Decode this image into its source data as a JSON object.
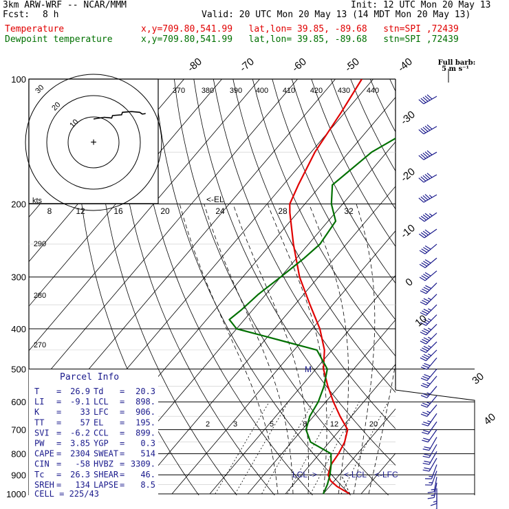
{
  "header": {
    "model": "3km ARW-WRF -- NCAR/MMM",
    "init": "Init: 12 UTC Mon 20 May 13",
    "fcst_label": "Fcst:",
    "fcst_value": "8 h",
    "valid": "Valid: 20 UTC Mon 20 May 13 (14 MDT Mon 20 May 13)",
    "temp_label": "Temperature",
    "temp_info": "x,y=709.80,541.99   lat,lon= 39.85, -89.68   stn=SPI ,72439",
    "dew_label": "Dewpoint temperature",
    "dew_info": "x,y=709.80,541.99   lat,lon= 39.85, -89.68   stn=SPI ,72439"
  },
  "colors": {
    "temperature": "#e00000",
    "dewpoint": "#007000",
    "wind": "#1a1a8c",
    "info": "#1a1a8c"
  },
  "chart_data": {
    "type": "line",
    "title": "",
    "ylabel": "",
    "xlabel": "",
    "pressure_levels": [
      100,
      200,
      300,
      400,
      500,
      600,
      700,
      800,
      900,
      1000
    ],
    "pressure_labels": [
      "100",
      "200",
      "300",
      "400",
      "500",
      "600",
      "700",
      "800",
      "900",
      "1000"
    ],
    "isotherm_labels": [
      "-80",
      "-70",
      "-60",
      "-50",
      "-40",
      "-30",
      "-20",
      "-10",
      "0",
      "10",
      "30",
      "40"
    ],
    "theta_labels": [
      "370",
      "380",
      "390",
      "400",
      "410",
      "420",
      "430",
      "440"
    ],
    "hodograph_speed_labels": [
      "8",
      "12",
      "16",
      "20",
      "24",
      "28",
      "32"
    ],
    "hodograph_ring_labels": [
      "30",
      "20",
      "10"
    ],
    "mixing_ratio_labels": [
      "2",
      "3",
      "5",
      "8",
      "12",
      "20"
    ],
    "adiabat_labels": [
      "290",
      "280",
      "270"
    ],
    "kts_label": "kts",
    "el_marker": "<-EL",
    "lcl_markers": [
      "LCL ->",
      "<-LCL",
      "<-LFC"
    ],
    "m_marker": "M",
    "barb_legend": [
      "Full barb:",
      "5 m s⁻¹"
    ],
    "series": [
      {
        "name": "Temperature",
        "points": [
          [
            1000,
            27
          ],
          [
            960,
            22
          ],
          [
            930,
            19
          ],
          [
            900,
            17
          ],
          [
            850,
            15.5
          ],
          [
            800,
            15
          ],
          [
            750,
            14
          ],
          [
            700,
            12
          ],
          [
            650,
            7
          ],
          [
            600,
            2
          ],
          [
            550,
            -3
          ],
          [
            500,
            -8
          ],
          [
            450,
            -12
          ],
          [
            400,
            -18
          ],
          [
            350,
            -26
          ],
          [
            300,
            -35
          ],
          [
            250,
            -44
          ],
          [
            210,
            -52
          ],
          [
            200,
            -54
          ],
          [
            180,
            -56
          ],
          [
            150,
            -59
          ],
          [
            120,
            -61
          ],
          [
            100,
            -63
          ]
        ]
      },
      {
        "name": "Dewpoint temperature",
        "points": [
          [
            1000,
            20
          ],
          [
            950,
            19
          ],
          [
            900,
            17.5
          ],
          [
            850,
            15.5
          ],
          [
            800,
            13
          ],
          [
            750,
            5
          ],
          [
            700,
            1
          ],
          [
            650,
            -1
          ],
          [
            600,
            -2
          ],
          [
            550,
            -4
          ],
          [
            500,
            -7
          ],
          [
            450,
            -14
          ],
          [
            430,
            -24
          ],
          [
            400,
            -40
          ],
          [
            380,
            -44
          ],
          [
            360,
            -43
          ],
          [
            330,
            -42
          ],
          [
            300,
            -40
          ],
          [
            270,
            -38
          ],
          [
            250,
            -37
          ],
          [
            220,
            -38
          ],
          [
            200,
            -43
          ],
          [
            180,
            -47
          ],
          [
            150,
            -44
          ],
          [
            130,
            -38
          ],
          [
            120,
            -35
          ],
          [
            100,
            -35
          ]
        ]
      }
    ],
    "hodograph_trace_units": [
      [
        0,
        0
      ],
      [
        1.3,
        0.7
      ],
      [
        2.2,
        0.4
      ],
      [
        2.3,
        1.4
      ],
      [
        3.4,
        1.7
      ],
      [
        3.5,
        2.7
      ],
      [
        4.6,
        3.0
      ],
      [
        5.6,
        2.7
      ],
      [
        5.9,
        2.0
      ],
      [
        6.2,
        2.1
      ],
      [
        6.3,
        2.3
      ]
    ],
    "wind_profile": {
      "pressure": [
        110,
        130,
        150,
        170,
        190,
        210,
        230,
        250,
        270,
        290,
        310,
        330,
        350,
        370,
        390,
        410,
        430,
        450,
        470,
        500,
        520,
        550,
        580,
        610,
        640,
        670,
        700,
        730,
        760,
        790,
        820,
        850,
        880,
        910,
        940,
        970,
        1000
      ],
      "speed_kts": [
        50,
        50,
        50,
        50,
        45,
        45,
        40,
        40,
        40,
        40,
        40,
        35,
        35,
        35,
        35,
        35,
        35,
        35,
        30,
        30,
        25,
        25,
        25,
        25,
        25,
        20,
        20,
        20,
        20,
        20,
        20,
        15,
        15,
        15,
        15,
        15,
        10
      ],
      "direction_deg": [
        240,
        240,
        240,
        240,
        240,
        235,
        235,
        230,
        230,
        230,
        225,
        225,
        225,
        225,
        225,
        225,
        225,
        225,
        220,
        220,
        220,
        220,
        220,
        220,
        215,
        215,
        215,
        210,
        210,
        210,
        210,
        200,
        200,
        190,
        190,
        180,
        180
      ]
    }
  },
  "parcel": {
    "title": "Parcel Info",
    "rows": [
      [
        "T",
        "=",
        "26.9",
        "Td",
        "=",
        "20.3"
      ],
      [
        "LI",
        "=",
        "-9.1",
        "LCL",
        "=",
        "898."
      ],
      [
        "K",
        "=",
        "33",
        "LFC",
        "=",
        "906."
      ],
      [
        "TT",
        "=",
        "57",
        "EL",
        "=",
        "195."
      ],
      [
        "SVI",
        "=",
        "-6.2",
        "CCL",
        "=",
        "899."
      ],
      [
        "PW",
        "=",
        "3.85",
        "YGP",
        "=",
        "0.3"
      ],
      [
        "CAPE",
        "=",
        "2304",
        "SWEAT",
        "=",
        "514"
      ],
      [
        "CIN",
        "=",
        "-58",
        "HVBZ",
        "=",
        "3309."
      ],
      [
        "Tc",
        "=",
        "26.3",
        "SHEAR",
        "=",
        "46."
      ],
      [
        "SREH",
        "=",
        "134",
        "LAPSE",
        "=",
        "8.5"
      ]
    ],
    "cell": "CELL = 225/43"
  }
}
